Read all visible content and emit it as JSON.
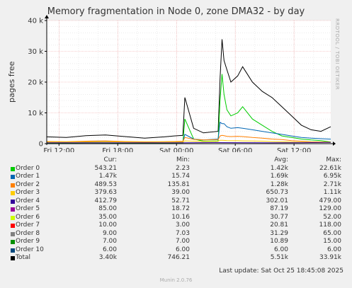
{
  "title": "Memory fragmentation in Node 0, zone DMA32 - by day",
  "y_axis_label": "pages free",
  "side_label": "RRDTOOL / TOBI OETIKER",
  "legend_headers": {
    "cur": "Cur:",
    "min": "Min:",
    "avg": "Avg:",
    "max": "Max:"
  },
  "legend": [
    {
      "name": "Order 0",
      "color": "#00cc00",
      "cur": "543.21",
      "min": "2.23",
      "avg": "1.42k",
      "max": "22.61k"
    },
    {
      "name": "Order 1",
      "color": "#0066b3",
      "cur": "1.47k",
      "min": "15.74",
      "avg": "1.69k",
      "max": "6.95k"
    },
    {
      "name": "Order 2",
      "color": "#ff8000",
      "cur": "489.53",
      "min": "135.81",
      "avg": "1.28k",
      "max": "2.71k"
    },
    {
      "name": "Order 3",
      "color": "#ffcc00",
      "cur": "379.63",
      "min": "39.00",
      "avg": "650.73",
      "max": "1.11k"
    },
    {
      "name": "Order 4",
      "color": "#330099",
      "cur": "412.79",
      "min": "52.71",
      "avg": "302.01",
      "max": "479.00"
    },
    {
      "name": "Order 5",
      "color": "#990099",
      "cur": "85.00",
      "min": "18.72",
      "avg": "87.19",
      "max": "129.00"
    },
    {
      "name": "Order 6",
      "color": "#ccff00",
      "cur": "35.00",
      "min": "10.16",
      "avg": "30.77",
      "max": "52.00"
    },
    {
      "name": "Order 7",
      "color": "#ff0000",
      "cur": "10.00",
      "min": "3.00",
      "avg": "20.81",
      "max": "118.00"
    },
    {
      "name": "Order 8",
      "color": "#808080",
      "cur": "9.00",
      "min": "7.03",
      "avg": "31.29",
      "max": "65.00"
    },
    {
      "name": "Order 9",
      "color": "#008f00",
      "cur": "7.00",
      "min": "7.00",
      "avg": "10.89",
      "max": "15.00"
    },
    {
      "name": "Order 10",
      "color": "#00487d",
      "cur": "6.00",
      "min": "6.00",
      "avg": "6.00",
      "max": "6.00"
    },
    {
      "name": "Total",
      "color": "#000000",
      "cur": "3.40k",
      "min": "746.21",
      "avg": "5.51k",
      "max": "33.91k"
    }
  ],
  "last_update": "Last update: Sat Oct 25 18:45:08 2025",
  "footer": "Munin 2.0.76",
  "chart_data": {
    "type": "line",
    "title": "Memory fragmentation in Node 0, zone DMA32 - by day",
    "ylabel": "pages free",
    "ylim": [
      0,
      40000
    ],
    "yticks": [
      0,
      10000,
      20000,
      30000,
      40000
    ],
    "ytick_labels": [
      "0",
      "10 k",
      "20 k",
      "30 k",
      "40 k"
    ],
    "x_range_hours": [
      -29,
      0
    ],
    "xtick_hours": [
      -27.75,
      -21.75,
      -15.75,
      -9.75,
      -3.75,
      2.25
    ],
    "xtick_labels": [
      "Fri 12:00",
      "Fri 18:00",
      "Sat 00:00",
      "Sat 06:00",
      "Sat 12:00",
      "Sat 18:00"
    ],
    "grid": true,
    "series": [
      {
        "name": "Total",
        "color": "#000000",
        "x": [
          -29,
          -27,
          -25,
          -23,
          -21,
          -19,
          -17,
          -16,
          -15.1,
          -14.9,
          -14,
          -13,
          -11.5,
          -11.3,
          -11.1,
          -10.9,
          -10.6,
          -10.2,
          -9.5,
          -9,
          -8,
          -7,
          -6,
          -5,
          -4,
          -3,
          -2,
          -1,
          0
        ],
        "y": [
          2200,
          2000,
          2600,
          2800,
          2300,
          1800,
          2200,
          2500,
          2700,
          15000,
          5000,
          3500,
          4000,
          21000,
          33900,
          27000,
          24000,
          20000,
          22000,
          25000,
          20000,
          17000,
          15000,
          12000,
          9000,
          6000,
          4500,
          4000,
          5500
        ]
      },
      {
        "name": "Order 0",
        "color": "#00cc00",
        "x": [
          -29,
          -27,
          -25,
          -23,
          -21,
          -19,
          -17,
          -16,
          -15.1,
          -14.9,
          -14,
          -13,
          -11.5,
          -11.3,
          -11.1,
          -10.9,
          -10.6,
          -10.2,
          -9.5,
          -9,
          -8,
          -7,
          -6,
          -5,
          -4,
          -3,
          -2,
          -1,
          0
        ],
        "y": [
          200,
          150,
          300,
          250,
          200,
          150,
          200,
          250,
          300,
          8000,
          1500,
          800,
          900,
          14000,
          22600,
          16000,
          11000,
          9000,
          10000,
          12000,
          8000,
          6000,
          4000,
          2500,
          2000,
          1500,
          1200,
          1000,
          543
        ]
      },
      {
        "name": "Order 1",
        "color": "#0066b3",
        "x": [
          -29,
          -27,
          -25,
          -23,
          -21,
          -19,
          -17,
          -16,
          -15.1,
          -14.9,
          -14,
          -13,
          -11.5,
          -11.3,
          -11.1,
          -10.9,
          -10.6,
          -10.2,
          -9.5,
          -9,
          -8,
          -7,
          -6,
          -5,
          -4,
          -3,
          -2,
          -1,
          0
        ],
        "y": [
          600,
          500,
          700,
          700,
          600,
          500,
          600,
          650,
          700,
          3000,
          1500,
          1200,
          1500,
          6950,
          6500,
          6500,
          5500,
          5000,
          5200,
          5000,
          4500,
          4000,
          3500,
          3000,
          2500,
          2000,
          1800,
          1600,
          1470
        ]
      },
      {
        "name": "Order 2",
        "color": "#ff8000",
        "x": [
          -29,
          -27,
          -25,
          -23,
          -21,
          -19,
          -17,
          -16,
          -15.1,
          -14.9,
          -14,
          -13,
          -11.5,
          -11.3,
          -11.1,
          -10.9,
          -10.6,
          -10.2,
          -9.5,
          -9,
          -8,
          -7,
          -6,
          -5,
          -4,
          -3,
          -2,
          -1,
          0
        ],
        "y": [
          700,
          650,
          800,
          900,
          700,
          600,
          650,
          700,
          750,
          2000,
          1400,
          1200,
          1300,
          2500,
          2700,
          2600,
          2400,
          2300,
          2400,
          2300,
          2000,
          1800,
          1500,
          1300,
          1000,
          800,
          600,
          550,
          490
        ]
      },
      {
        "name": "Order 3",
        "color": "#ffcc00",
        "x": [
          -29,
          -27,
          -25,
          -23,
          -21,
          -19,
          -17,
          -16,
          -15.1,
          -14.9,
          -14,
          -13,
          -11.5,
          -11.3,
          -11.1,
          -10.9,
          -10.6,
          -10.2,
          -9.5,
          -9,
          -8,
          -7,
          -6,
          -5,
          -4,
          -3,
          -2,
          -1,
          0
        ],
        "y": [
          500,
          500,
          550,
          600,
          500,
          450,
          500,
          520,
          540,
          900,
          800,
          700,
          750,
          1100,
          1100,
          1050,
          1000,
          950,
          950,
          900,
          850,
          800,
          700,
          600,
          500,
          450,
          400,
          380,
          380
        ]
      },
      {
        "name": "Order 4",
        "color": "#330099",
        "x": [
          -29,
          -15,
          -12,
          -9,
          -6,
          -3,
          0
        ],
        "y": [
          300,
          310,
          350,
          330,
          300,
          320,
          413
        ]
      }
    ]
  }
}
